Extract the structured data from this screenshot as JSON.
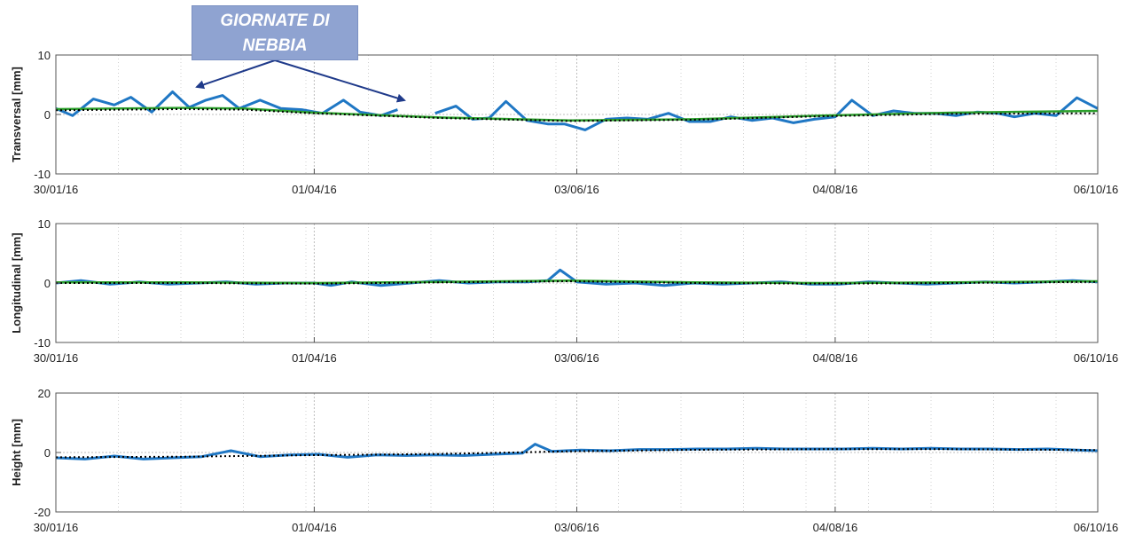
{
  "annotation": {
    "line1": "GIORNATE DI",
    "line2": "NEBBIA"
  },
  "colors": {
    "measured": "#1f77c4",
    "fit": "#2ca02c",
    "trend": "#000000",
    "grid": "#d0d0d0",
    "annot_arrow": "#1f3a8a"
  },
  "chart_data": [
    {
      "type": "line",
      "ylabel": "Transversal [mm]",
      "ylim": [
        -10,
        10
      ],
      "yticks": [
        10,
        0,
        -10
      ],
      "xlim": [
        "30/01/16",
        "06/10/16"
      ],
      "xticks": [
        "30/01/16",
        "01/04/16",
        "03/06/16",
        "04/08/16",
        "06/10/16"
      ],
      "grid": true,
      "series": [
        {
          "style": "measured",
          "x": [
            "30/01/16",
            "03/02/16",
            "08/02/16",
            "13/02/16",
            "17/02/16",
            "22/02/16",
            "27/02/16",
            "02/03/16",
            "06/03/16",
            "10/03/16",
            "14/03/16",
            "19/03/16",
            "24/03/16",
            "29/03/16",
            "03/04/16",
            "08/04/16",
            "12/04/16",
            "17/04/16",
            "21/04/16",
            "25/04/16",
            "30/04/16",
            "05/05/16",
            "09/05/16",
            "13/05/16",
            "17/05/16",
            "22/05/16",
            "27/05/16",
            "31/05/16",
            "05/06/16",
            "10/06/16",
            "15/06/16",
            "20/06/16",
            "25/06/16",
            "30/06/16",
            "05/07/16",
            "10/07/16",
            "15/07/16",
            "20/07/16",
            "25/07/16",
            "30/07/16",
            "04/08/16",
            "08/08/16",
            "13/08/16",
            "18/08/16",
            "23/08/16",
            "28/08/16",
            "02/09/16",
            "07/09/16",
            "12/09/16",
            "16/09/16",
            "21/09/16",
            "26/09/16",
            "01/10/16",
            "06/10/16"
          ],
          "y": [
            1.0,
            -0.2,
            2.6,
            1.6,
            2.9,
            0.4,
            3.8,
            1.2,
            2.4,
            3.2,
            1.0,
            2.4,
            1.0,
            0.8,
            0.2,
            2.4,
            0.4,
            -0.2,
            0.8,
            null,
            0.2,
            1.4,
            -0.8,
            -0.6,
            2.2,
            -1.0,
            -1.6,
            -1.6,
            -2.6,
            -0.8,
            -0.6,
            -0.8,
            0.2,
            -1.2,
            -1.2,
            -0.4,
            -1.0,
            -0.6,
            -1.4,
            -0.8,
            -0.4,
            2.4,
            -0.2,
            0.6,
            0.2,
            0.2,
            -0.2,
            0.4,
            0.2,
            -0.4,
            0.2,
            -0.2,
            2.8,
            1.0
          ]
        },
        {
          "style": "fit",
          "x": [
            "30/01/16",
            "29/02/16",
            "15/03/16",
            "01/04/16",
            "01/05/16",
            "01/06/16",
            "01/07/16",
            "01/08/16",
            "01/09/16",
            "06/10/16"
          ],
          "y": [
            0.9,
            1.1,
            1.0,
            0.3,
            -0.5,
            -1.0,
            -0.8,
            -0.2,
            0.3,
            0.6
          ]
        },
        {
          "style": "trend",
          "x": [
            "30/01/16",
            "29/02/16",
            "15/03/16",
            "01/04/16",
            "01/05/16",
            "01/06/16",
            "01/07/16",
            "01/08/16",
            "01/09/16",
            "06/10/16"
          ],
          "y": [
            0.7,
            0.9,
            0.8,
            0.2,
            -0.6,
            -1.1,
            -0.9,
            -0.3,
            0.1,
            0.2
          ]
        }
      ]
    },
    {
      "type": "line",
      "ylabel": "Longitudinal [mm]",
      "ylim": [
        -10,
        10
      ],
      "yticks": [
        10,
        0,
        -10
      ],
      "xlim": [
        "30/01/16",
        "06/10/16"
      ],
      "xticks": [
        "30/01/16",
        "01/04/16",
        "03/06/16",
        "04/08/16",
        "06/10/16"
      ],
      "grid": true,
      "series": [
        {
          "style": "measured",
          "x": [
            "30/01/16",
            "05/02/16",
            "12/02/16",
            "19/02/16",
            "26/02/16",
            "04/03/16",
            "11/03/16",
            "18/03/16",
            "25/03/16",
            "01/04/16",
            "05/04/16",
            "10/04/16",
            "17/04/16",
            "24/04/16",
            "01/05/16",
            "08/05/16",
            "15/05/16",
            "22/05/16",
            "27/05/16",
            "30/05/16",
            "03/06/16",
            "10/06/16",
            "17/06/16",
            "24/06/16",
            "01/07/16",
            "08/07/16",
            "15/07/16",
            "22/07/16",
            "29/07/16",
            "05/08/16",
            "12/08/16",
            "19/08/16",
            "26/08/16",
            "02/09/16",
            "09/09/16",
            "16/09/16",
            "23/09/16",
            "30/09/16",
            "06/10/16"
          ],
          "y": [
            0.0,
            0.4,
            -0.2,
            0.2,
            -0.2,
            0.0,
            0.2,
            -0.2,
            0.0,
            0.0,
            -0.4,
            0.2,
            -0.4,
            0.0,
            0.4,
            0.0,
            0.2,
            0.2,
            0.4,
            2.2,
            0.2,
            -0.2,
            0.0,
            -0.4,
            0.0,
            -0.2,
            0.0,
            0.2,
            -0.2,
            -0.2,
            0.2,
            0.0,
            -0.2,
            0.0,
            0.2,
            0.0,
            0.2,
            0.4,
            0.2
          ]
        },
        {
          "style": "fit",
          "x": [
            "30/01/16",
            "01/03/16",
            "01/04/16",
            "01/05/16",
            "01/06/16",
            "01/07/16",
            "01/08/16",
            "01/09/16",
            "06/10/16"
          ],
          "y": [
            0.1,
            0.1,
            0.0,
            0.2,
            0.4,
            0.1,
            0.0,
            0.1,
            0.3
          ]
        },
        {
          "style": "trend",
          "x": [
            "30/01/16",
            "01/03/16",
            "01/04/16",
            "01/05/16",
            "01/06/16",
            "01/07/16",
            "01/08/16",
            "01/09/16",
            "06/10/16"
          ],
          "y": [
            0.0,
            0.0,
            -0.1,
            0.1,
            0.3,
            0.0,
            -0.1,
            0.0,
            0.2
          ]
        }
      ]
    },
    {
      "type": "line",
      "ylabel": "Height [mm]",
      "ylim": [
        -20,
        20
      ],
      "yticks": [
        20,
        0,
        -20
      ],
      "xlim": [
        "30/01/16",
        "06/10/16"
      ],
      "xticks": [
        "30/01/16",
        "01/04/16",
        "03/06/16",
        "04/08/16",
        "06/10/16"
      ],
      "grid": true,
      "series": [
        {
          "style": "measured",
          "x": [
            "30/01/16",
            "06/02/16",
            "13/02/16",
            "20/02/16",
            "27/02/16",
            "05/03/16",
            "12/03/16",
            "19/03/16",
            "26/03/16",
            "02/04/16",
            "09/04/16",
            "16/04/16",
            "23/04/16",
            "30/04/16",
            "07/05/16",
            "14/05/16",
            "21/05/16",
            "24/05/16",
            "28/05/16",
            "04/06/16",
            "11/06/16",
            "18/06/16",
            "25/06/16",
            "02/07/16",
            "09/07/16",
            "16/07/16",
            "23/07/16",
            "30/07/16",
            "06/08/16",
            "13/08/16",
            "20/08/16",
            "27/08/16",
            "03/09/16",
            "10/09/16",
            "17/09/16",
            "24/09/16",
            "01/10/16",
            "06/10/16"
          ],
          "y": [
            -1.8,
            -2.2,
            -1.2,
            -2.2,
            -1.8,
            -1.4,
            0.6,
            -1.4,
            -0.8,
            -0.6,
            -1.6,
            -0.8,
            -1.0,
            -0.8,
            -1.0,
            -0.6,
            -0.2,
            2.8,
            0.4,
            0.8,
            0.6,
            1.0,
            1.0,
            1.2,
            1.2,
            1.4,
            1.2,
            1.2,
            1.2,
            1.4,
            1.2,
            1.4,
            1.2,
            1.2,
            1.0,
            1.2,
            0.8,
            0.6
          ]
        },
        {
          "style": "trend",
          "x": [
            "30/01/16",
            "01/03/16",
            "01/04/16",
            "01/05/16",
            "01/06/16",
            "01/07/16",
            "01/08/16",
            "01/09/16",
            "06/10/16"
          ],
          "y": [
            -1.6,
            -1.4,
            -0.9,
            -0.5,
            0.4,
            0.9,
            1.1,
            1.1,
            0.8
          ]
        }
      ]
    }
  ]
}
